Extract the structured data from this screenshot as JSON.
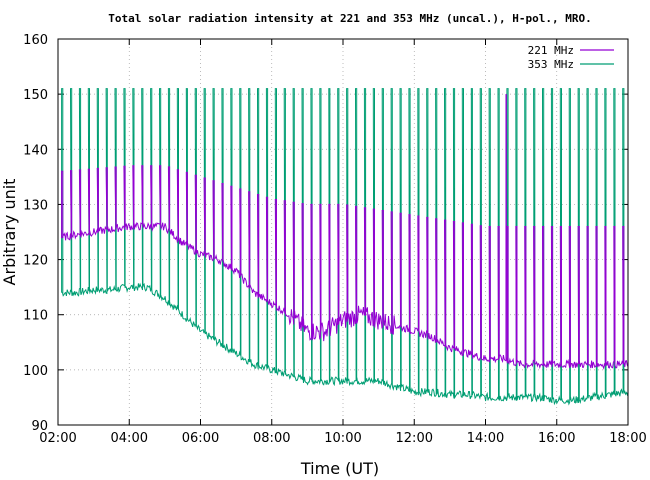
{
  "chart_data": {
    "type": "line",
    "title": "Total solar radiation intensity at 221 and 353 MHz (uncal.), H-pol., MRO.",
    "xlabel": "Time (UT)",
    "ylabel": "Arbitrary unit",
    "xlim": [
      2,
      18
    ],
    "ylim": [
      90,
      160
    ],
    "xticks": [
      "02:00",
      "04:00",
      "06:00",
      "08:00",
      "10:00",
      "12:00",
      "14:00",
      "16:00",
      "18:00"
    ],
    "yticks": [
      "90",
      "100",
      "110",
      "120",
      "130",
      "140",
      "150",
      "160"
    ],
    "grid": true,
    "legend_position": "top-right",
    "calibration_interval_hours": 0.25,
    "series": [
      {
        "name": "221 MHz",
        "color": "#9400d3",
        "baseline": {
          "x": [
            2.1,
            2.5,
            3.0,
            3.5,
            4.0,
            4.5,
            5.0,
            5.5,
            6.0,
            6.5,
            7.0,
            7.5,
            8.0,
            8.5,
            9.0,
            9.5,
            10.0,
            10.5,
            11.0,
            11.5,
            12.0,
            12.5,
            13.0,
            13.5,
            14.0,
            14.5,
            15.0,
            15.5,
            16.0,
            16.5,
            17.0,
            17.5,
            18.0
          ],
          "y": [
            124,
            124.5,
            125,
            125.5,
            126,
            126,
            126,
            123,
            121,
            120,
            118,
            114,
            112,
            110,
            107,
            107,
            109,
            110,
            109,
            108,
            107,
            106,
            104,
            103,
            102,
            102,
            101,
            101,
            101,
            101,
            101,
            101,
            101
          ]
        },
        "calibration_peak": {
          "x": [
            2.1,
            4.0,
            5.0,
            6.0,
            7.0,
            8.0,
            9.0,
            10.0,
            11.0,
            12.0,
            13.0,
            14.0,
            15.0,
            16.0,
            17.0,
            18.0
          ],
          "y": [
            136,
            137,
            137,
            135,
            133,
            131,
            130,
            130,
            129,
            128,
            127,
            126,
            126,
            126,
            126,
            126
          ]
        },
        "spike": {
          "x": 14.58,
          "y": 150
        }
      },
      {
        "name": "353 MHz",
        "color": "#009e73",
        "baseline": {
          "x": [
            2.1,
            2.5,
            3.0,
            3.5,
            4.0,
            4.5,
            5.0,
            5.5,
            6.0,
            6.5,
            7.0,
            7.5,
            8.0,
            8.5,
            9.0,
            9.5,
            10.0,
            10.5,
            11.0,
            11.5,
            12.0,
            12.5,
            13.0,
            13.5,
            14.0,
            14.5,
            15.0,
            15.5,
            16.0,
            16.5,
            17.0,
            17.5,
            18.0
          ],
          "y": [
            114,
            114,
            114.5,
            114.5,
            115,
            115,
            113,
            110,
            107,
            105,
            103,
            101,
            100,
            99,
            98,
            98,
            98,
            98,
            98,
            97,
            96,
            96,
            95.5,
            95.5,
            95,
            95,
            95,
            95,
            94.5,
            94.5,
            95,
            95.5,
            96
          ]
        },
        "calibration_peak": {
          "x": [
            2.1,
            18.0
          ],
          "y": [
            151,
            151
          ]
        }
      }
    ]
  }
}
